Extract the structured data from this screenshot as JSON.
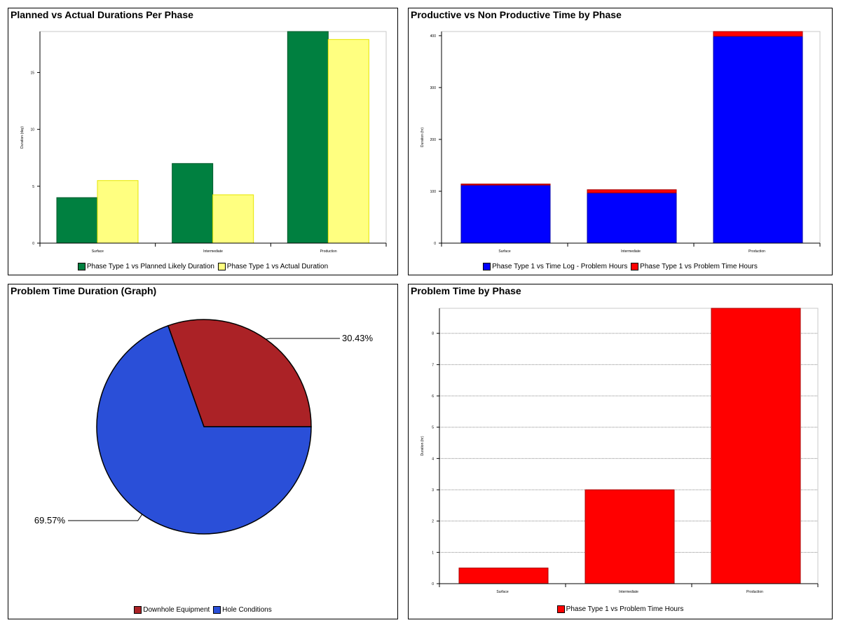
{
  "charts": [
    {
      "id": "c1",
      "title": "Planned vs Actual Durations Per Phase",
      "chart_data": {
        "type": "bar",
        "title": "Planned vs Actual Durations Per Phase",
        "ylabel": "Duration (day)",
        "xlabel": "",
        "categories": [
          "Surface",
          "Intermediate",
          "Production"
        ],
        "ylim": [
          0,
          18.6
        ],
        "yticks": [
          0,
          5,
          10,
          15
        ],
        "grid": false,
        "series": [
          {
            "name": "Phase Type 1 vs Planned Likely Duration",
            "color": "#008040",
            "stroke": "#005a2a",
            "values": [
              4,
              7,
              18.6
            ]
          },
          {
            "name": "Phase Type 1 vs Actual Duration",
            "color": "#ffff80",
            "stroke": "#e6e600",
            "values": [
              5.5,
              4.25,
              17.9
            ]
          }
        ]
      }
    },
    {
      "id": "c2",
      "title": "Productive vs Non Productive Time by Phase",
      "chart_data": {
        "type": "bar",
        "stacked": true,
        "title": "Productive vs Non Productive Time by Phase",
        "ylabel": "Duration (hr)",
        "xlabel": "",
        "categories": [
          "Surface",
          "Intermediate",
          "Production"
        ],
        "ylim": [
          0,
          408
        ],
        "yticks": [
          0,
          100,
          200,
          300,
          400
        ],
        "grid": false,
        "series": [
          {
            "name": "Phase Type 1 vs Time Log - Problem Hours",
            "color": "#0000ff",
            "stroke": "#0000aa",
            "values": [
              112,
              97,
              399
            ]
          },
          {
            "name": "Phase Type 1 vs Problem Time Hours",
            "color": "#ff0000",
            "stroke": "#aa0000",
            "values": [
              2,
              6,
              9
            ]
          }
        ]
      }
    },
    {
      "id": "c3",
      "title": "Problem Time Duration (Graph)",
      "chart_data": {
        "type": "pie",
        "title": "Problem Time Duration (Graph)",
        "slices": [
          {
            "name": "Downhole Equipment",
            "value": 30.43,
            "label": "30.43%",
            "color": "#ab2226"
          },
          {
            "name": "Hole Conditions",
            "value": 69.57,
            "label": "69.57%",
            "color": "#2a4fd8"
          }
        ]
      }
    },
    {
      "id": "c4",
      "title": "Problem Time by Phase",
      "chart_data": {
        "type": "bar",
        "title": "Problem Time by Phase",
        "ylabel": "Duration (hr)",
        "xlabel": "",
        "categories": [
          "Surface",
          "Intermediate",
          "Production"
        ],
        "ylim": [
          0,
          8.8
        ],
        "yticks": [
          0,
          1,
          2,
          3,
          4,
          5,
          6,
          7,
          8
        ],
        "grid": true,
        "series": [
          {
            "name": "Phase Type 1 vs Problem Time Hours",
            "color": "#ff0000",
            "stroke": "#aa0000",
            "values": [
              0.5,
              3,
              8.8
            ]
          }
        ]
      }
    }
  ]
}
